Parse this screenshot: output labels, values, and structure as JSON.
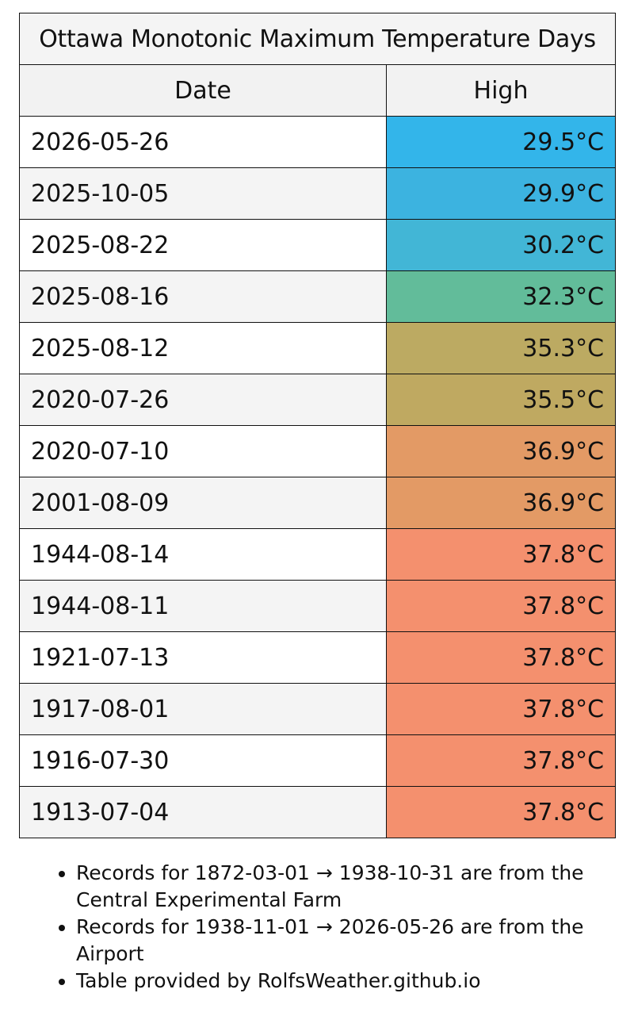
{
  "table": {
    "title": "Ottawa Monotonic Maximum Temperature Days",
    "headers": {
      "date": "Date",
      "high": "High"
    },
    "rows": [
      {
        "date": "2026-05-26",
        "high": "29.5°C",
        "color": "#33b5ea"
      },
      {
        "date": "2025-10-05",
        "high": "29.9°C",
        "color": "#3cb3e0"
      },
      {
        "date": "2025-08-22",
        "high": "30.2°C",
        "color": "#42b6d6"
      },
      {
        "date": "2025-08-16",
        "high": "32.3°C",
        "color": "#62bc9a"
      },
      {
        "date": "2025-08-12",
        "high": "35.3°C",
        "color": "#bcaa62"
      },
      {
        "date": "2020-07-26",
        "high": "35.5°C",
        "color": "#bfa961"
      },
      {
        "date": "2020-07-10",
        "high": "36.9°C",
        "color": "#e39a65"
      },
      {
        "date": "2001-08-09",
        "high": "36.9°C",
        "color": "#e39a65"
      },
      {
        "date": "1944-08-14",
        "high": "37.8°C",
        "color": "#f4906e"
      },
      {
        "date": "1944-08-11",
        "high": "37.8°C",
        "color": "#f4906e"
      },
      {
        "date": "1921-07-13",
        "high": "37.8°C",
        "color": "#f4906e"
      },
      {
        "date": "1917-08-01",
        "high": "37.8°C",
        "color": "#f4906e"
      },
      {
        "date": "1916-07-30",
        "high": "37.8°C",
        "color": "#f4906e"
      },
      {
        "date": "1913-07-04",
        "high": "37.8°C",
        "color": "#f4906e"
      }
    ]
  },
  "notes": [
    "Records for 1872-03-01 → 1938-10-31 are from the Central Experimental Farm",
    "Records for 1938-11-01 → 2026-05-26 are from the Airport",
    "Table provided by RolfsWeather.github.io"
  ]
}
